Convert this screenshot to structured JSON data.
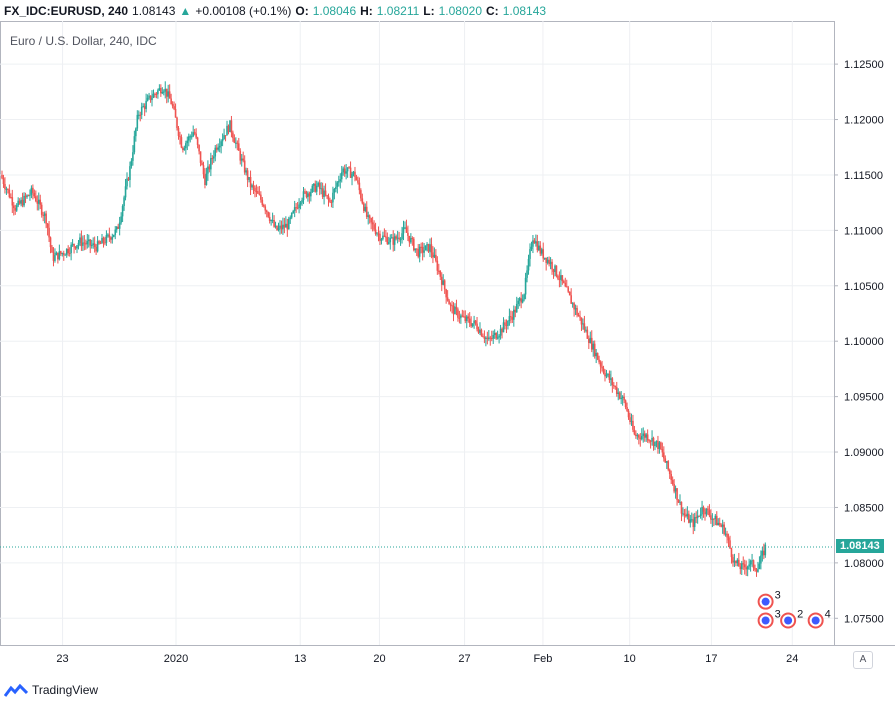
{
  "header": {
    "symbol": "FX_IDC:EURUSD, 240",
    "last": "1.08143",
    "up_arrow": "▲",
    "change": "+0.00108 (+0.1%)",
    "o_label": "O:",
    "o_value": "1.08046",
    "h_label": "H:",
    "h_value": "1.08211",
    "l_label": "L:",
    "l_value": "1.08020",
    "c_label": "C:",
    "c_value": "1.08143"
  },
  "legend_title": "Euro / U.S. Dollar, 240, IDC",
  "footer": {
    "brand": "TradingView"
  },
  "auto_button": "A",
  "price_tag": "1.08143",
  "colors": {
    "up": "#26a69a",
    "down": "#ef5350",
    "grid": "#eef0f3",
    "axis": "#b2b5be",
    "last_line": "#26a69a"
  },
  "chart_data": {
    "type": "candlestick",
    "title": "Euro / U.S. Dollar, 240, IDC",
    "ylim": [
      1.0725,
      1.1288
    ],
    "y_ticks": [
      "1.12500",
      "1.12000",
      "1.11500",
      "1.11000",
      "1.10500",
      "1.10000",
      "1.09500",
      "1.09000",
      "1.08500",
      "1.08000",
      "1.07500"
    ],
    "y_tick_values": [
      1.125,
      1.12,
      1.115,
      1.11,
      1.105,
      1.1,
      1.095,
      1.09,
      1.085,
      1.08,
      1.075
    ],
    "x_ticks": [
      "23",
      "2020",
      "13",
      "20",
      "27",
      "Feb",
      "10",
      "17",
      "24"
    ],
    "x_tick_fraction": [
      0.075,
      0.211,
      0.36,
      0.455,
      0.557,
      0.651,
      0.755,
      0.853,
      0.95
    ],
    "last_price": 1.08143,
    "approx_close_path": [
      [
        0.0,
        1.115
      ],
      [
        0.018,
        1.112
      ],
      [
        0.038,
        1.1135
      ],
      [
        0.055,
        1.111
      ],
      [
        0.062,
        1.1075
      ],
      [
        0.075,
        1.108
      ],
      [
        0.095,
        1.109
      ],
      [
        0.115,
        1.1085
      ],
      [
        0.14,
        1.11
      ],
      [
        0.155,
        1.1155
      ],
      [
        0.165,
        1.1205
      ],
      [
        0.18,
        1.122
      ],
      [
        0.195,
        1.123
      ],
      [
        0.205,
        1.1215
      ],
      [
        0.218,
        1.1175
      ],
      [
        0.232,
        1.119
      ],
      [
        0.245,
        1.1145
      ],
      [
        0.258,
        1.1175
      ],
      [
        0.275,
        1.1195
      ],
      [
        0.288,
        1.1165
      ],
      [
        0.3,
        1.114
      ],
      [
        0.315,
        1.1125
      ],
      [
        0.33,
        1.11
      ],
      [
        0.345,
        1.1105
      ],
      [
        0.36,
        1.113
      ],
      [
        0.38,
        1.114
      ],
      [
        0.395,
        1.1125
      ],
      [
        0.41,
        1.1155
      ],
      [
        0.425,
        1.115
      ],
      [
        0.44,
        1.111
      ],
      [
        0.455,
        1.1095
      ],
      [
        0.47,
        1.109
      ],
      [
        0.485,
        1.11
      ],
      [
        0.5,
        1.108
      ],
      [
        0.515,
        1.1085
      ],
      [
        0.527,
        1.106
      ],
      [
        0.54,
        1.103
      ],
      [
        0.555,
        1.102
      ],
      [
        0.57,
        1.1015
      ],
      [
        0.585,
        1.1
      ],
      [
        0.6,
        1.101
      ],
      [
        0.615,
        1.1025
      ],
      [
        0.628,
        1.1045
      ],
      [
        0.638,
        1.1095
      ],
      [
        0.648,
        1.108
      ],
      [
        0.66,
        1.107
      ],
      [
        0.672,
        1.1055
      ],
      [
        0.685,
        1.1035
      ],
      [
        0.698,
        1.1015
      ],
      [
        0.71,
        1.0995
      ],
      [
        0.722,
        1.0975
      ],
      [
        0.735,
        1.096
      ],
      [
        0.748,
        1.0945
      ],
      [
        0.76,
        1.0915
      ],
      [
        0.775,
        1.0915
      ],
      [
        0.79,
        1.0905
      ],
      [
        0.805,
        1.0875
      ],
      [
        0.818,
        1.0845
      ],
      [
        0.83,
        1.0835
      ],
      [
        0.842,
        1.085
      ],
      [
        0.855,
        1.084
      ],
      [
        0.868,
        1.083
      ],
      [
        0.88,
        1.08
      ],
      [
        0.89,
        1.0795
      ],
      [
        0.898,
        1.08
      ],
      [
        0.908,
        1.0795
      ],
      [
        0.917,
        1.0814
      ]
    ]
  }
}
